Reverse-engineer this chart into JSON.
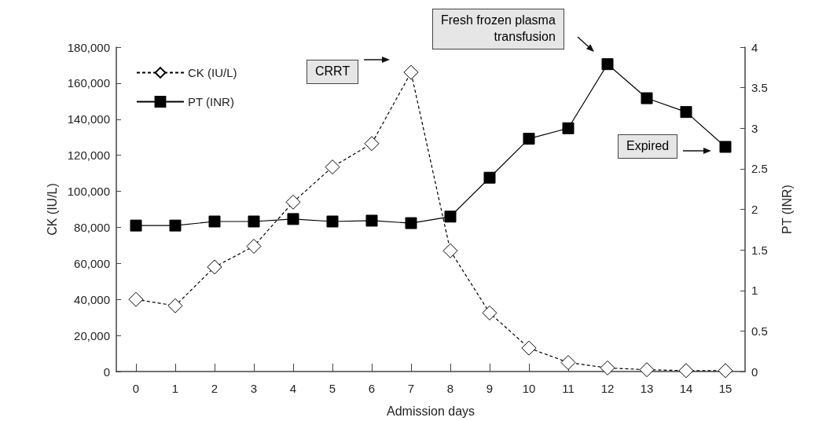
{
  "chart_data": {
    "type": "line",
    "xlabel": "Admission days",
    "ylabel": "CK (IU/L)",
    "y2label": "PT (INR)",
    "categories": [
      "0",
      "1",
      "2",
      "3",
      "4",
      "5",
      "6",
      "7",
      "8",
      "9",
      "10",
      "11",
      "12",
      "13",
      "14",
      "15"
    ],
    "series": [
      {
        "name": "CK (IU/L)",
        "color": "#000000",
        "marker": "diamond",
        "line_style": "dashed",
        "values": [
          40000,
          36500,
          58000,
          69500,
          94000,
          113500,
          126500,
          166000,
          67000,
          32500,
          13000,
          5000,
          2000,
          1000,
          500,
          500
        ]
      },
      {
        "name": "PT (INR)",
        "color": "#000000",
        "marker": "square",
        "line_style": "solid",
        "axis": "y2",
        "values": [
          1.8,
          1.8,
          1.85,
          1.85,
          1.88,
          1.85,
          1.86,
          1.83,
          1.91,
          2.39,
          2.87,
          3.0,
          3.79,
          3.37,
          3.2,
          2.77
        ]
      }
    ],
    "ylim": [
      0,
      180000
    ],
    "yticks": [
      {
        "value": 0,
        "label": "0"
      },
      {
        "value": 20000,
        "label": "20,000"
      },
      {
        "value": 40000,
        "label": "40,000"
      },
      {
        "value": 60000,
        "label": "60,000"
      },
      {
        "value": 80000,
        "label": "80,000"
      },
      {
        "value": 100000,
        "label": "100,000"
      },
      {
        "value": 120000,
        "label": "120,000"
      },
      {
        "value": 140000,
        "label": "140,000"
      },
      {
        "value": 160000,
        "label": "160,000"
      },
      {
        "value": 180000,
        "label": "180,000"
      }
    ],
    "y2lim": [
      0,
      4
    ],
    "y2ticks": [
      0,
      0.5,
      1,
      1.5,
      2,
      2.5,
      3,
      3.5,
      4
    ],
    "annotations": [
      "CRRT",
      "Fresh frozen plasma\ntransfusion",
      "Expired"
    ],
    "legend": "top left",
    "grid": false
  }
}
